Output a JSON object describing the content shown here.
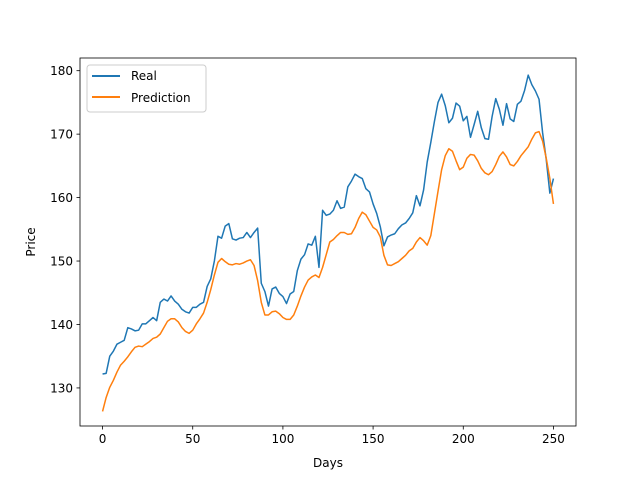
{
  "chart_data": {
    "type": "line",
    "title": "",
    "xlabel": "Days",
    "ylabel": "Price",
    "xlim": [
      -12.5,
      262.5
    ],
    "ylim": [
      124.0,
      182.0
    ],
    "xticks": [
      0,
      50,
      100,
      150,
      200,
      250
    ],
    "yticks": [
      130,
      140,
      150,
      160,
      170,
      180
    ],
    "grid": false,
    "legend": {
      "position": "top-left"
    },
    "series": [
      {
        "name": "Real",
        "color": "#1f77b4",
        "x": [
          0,
          2,
          4,
          6,
          8,
          10,
          12,
          14,
          16,
          18,
          20,
          22,
          24,
          26,
          28,
          30,
          32,
          34,
          36,
          38,
          40,
          42,
          44,
          46,
          48,
          50,
          52,
          54,
          56,
          58,
          60,
          62,
          64,
          66,
          68,
          70,
          72,
          74,
          76,
          78,
          80,
          82,
          84,
          86,
          88,
          90,
          92,
          94,
          96,
          98,
          100,
          102,
          104,
          106,
          108,
          110,
          112,
          114,
          116,
          118,
          120,
          122,
          124,
          126,
          128,
          130,
          132,
          134,
          136,
          138,
          140,
          142,
          144,
          146,
          148,
          150,
          152,
          154,
          156,
          158,
          160,
          162,
          164,
          166,
          168,
          170,
          172,
          174,
          176,
          178,
          180,
          182,
          184,
          186,
          188,
          190,
          192,
          194,
          196,
          198,
          200,
          202,
          204,
          206,
          208,
          210,
          212,
          214,
          216,
          218,
          220,
          222,
          224,
          226,
          228,
          230,
          232,
          234,
          236,
          238,
          240,
          242,
          244,
          246,
          248,
          250
        ],
        "y": [
          132.2,
          132.3,
          135.0,
          135.8,
          136.9,
          137.2,
          137.5,
          139.5,
          139.3,
          139.0,
          139.1,
          140.1,
          140.1,
          140.6,
          141.1,
          140.6,
          143.5,
          144.0,
          143.7,
          144.5,
          143.7,
          143.2,
          142.4,
          142.0,
          141.8,
          142.7,
          142.7,
          143.2,
          143.5,
          146.0,
          147.2,
          150.0,
          153.9,
          153.6,
          155.5,
          155.9,
          153.5,
          153.3,
          153.6,
          153.7,
          154.5,
          153.7,
          154.5,
          155.2,
          146.5,
          145.2,
          142.9,
          145.6,
          145.9,
          144.9,
          144.4,
          143.3,
          144.8,
          145.2,
          148.5,
          150.3,
          151.0,
          152.7,
          152.5,
          153.9,
          149.0,
          158.0,
          157.2,
          157.4,
          158.0,
          159.5,
          158.3,
          158.5,
          161.7,
          162.6,
          163.7,
          163.3,
          163.0,
          161.4,
          160.9,
          159.0,
          157.5,
          155.4,
          152.4,
          153.8,
          154.1,
          154.3,
          155.1,
          155.7,
          156.0,
          156.7,
          157.6,
          160.3,
          158.7,
          161.2,
          165.6,
          168.7,
          172.0,
          175.0,
          176.3,
          174.5,
          171.8,
          172.5,
          174.9,
          174.4,
          172.1,
          172.8,
          169.5,
          171.5,
          173.6,
          171.0,
          169.3,
          169.2,
          172.8,
          175.6,
          173.9,
          171.4,
          174.8,
          172.4,
          172.0,
          174.7,
          175.2,
          176.9,
          179.3,
          177.8,
          176.8,
          175.5,
          170.2,
          166.0,
          160.7,
          163.0
        ]
      },
      {
        "name": "Prediction",
        "color": "#ff7f0e",
        "x": [
          0,
          2,
          4,
          6,
          8,
          10,
          12,
          14,
          16,
          18,
          20,
          22,
          24,
          26,
          28,
          30,
          32,
          34,
          36,
          38,
          40,
          42,
          44,
          46,
          48,
          50,
          52,
          54,
          56,
          58,
          60,
          62,
          64,
          66,
          68,
          70,
          72,
          74,
          76,
          78,
          80,
          82,
          84,
          86,
          88,
          90,
          92,
          94,
          96,
          98,
          100,
          102,
          104,
          106,
          108,
          110,
          112,
          114,
          116,
          118,
          120,
          122,
          124,
          126,
          128,
          130,
          132,
          134,
          136,
          138,
          140,
          142,
          144,
          146,
          148,
          150,
          152,
          154,
          156,
          158,
          160,
          162,
          164,
          166,
          168,
          170,
          172,
          174,
          176,
          178,
          180,
          182,
          184,
          186,
          188,
          190,
          192,
          194,
          196,
          198,
          200,
          202,
          204,
          206,
          208,
          210,
          212,
          214,
          216,
          218,
          220,
          222,
          224,
          226,
          228,
          230,
          232,
          234,
          236,
          238,
          240,
          242,
          244,
          246,
          248,
          250
        ],
        "y": [
          126.3,
          128.5,
          130.1,
          131.2,
          132.5,
          133.6,
          134.2,
          134.9,
          135.7,
          136.4,
          136.6,
          136.5,
          136.9,
          137.3,
          137.8,
          138.0,
          138.5,
          139.5,
          140.5,
          140.9,
          140.9,
          140.4,
          139.5,
          138.9,
          138.6,
          139.1,
          140.1,
          140.9,
          141.8,
          143.5,
          145.5,
          147.8,
          149.8,
          150.4,
          149.9,
          149.5,
          149.4,
          149.6,
          149.5,
          149.7,
          150.0,
          150.2,
          149.3,
          146.9,
          143.5,
          141.5,
          141.5,
          142.0,
          142.1,
          141.7,
          141.1,
          140.8,
          140.8,
          141.5,
          142.9,
          144.5,
          145.9,
          147.0,
          147.5,
          147.8,
          147.4,
          149.0,
          151.0,
          153.0,
          153.4,
          154.0,
          154.5,
          154.5,
          154.2,
          154.3,
          155.3,
          156.7,
          157.7,
          157.3,
          156.3,
          155.3,
          154.9,
          153.8,
          150.9,
          149.4,
          149.3,
          149.6,
          149.9,
          150.4,
          150.9,
          151.6,
          152.0,
          153.0,
          153.7,
          153.2,
          152.5,
          154.0,
          157.5,
          161.0,
          164.4,
          166.6,
          167.7,
          167.3,
          165.8,
          164.4,
          164.8,
          166.2,
          166.8,
          166.7,
          165.8,
          164.6,
          163.9,
          163.6,
          164.1,
          165.2,
          166.5,
          167.2,
          166.4,
          165.2,
          165.0,
          165.7,
          166.6,
          167.3,
          168.0,
          169.2,
          170.2,
          170.4,
          168.9,
          166.2,
          163.0,
          159.0
        ]
      }
    ]
  }
}
